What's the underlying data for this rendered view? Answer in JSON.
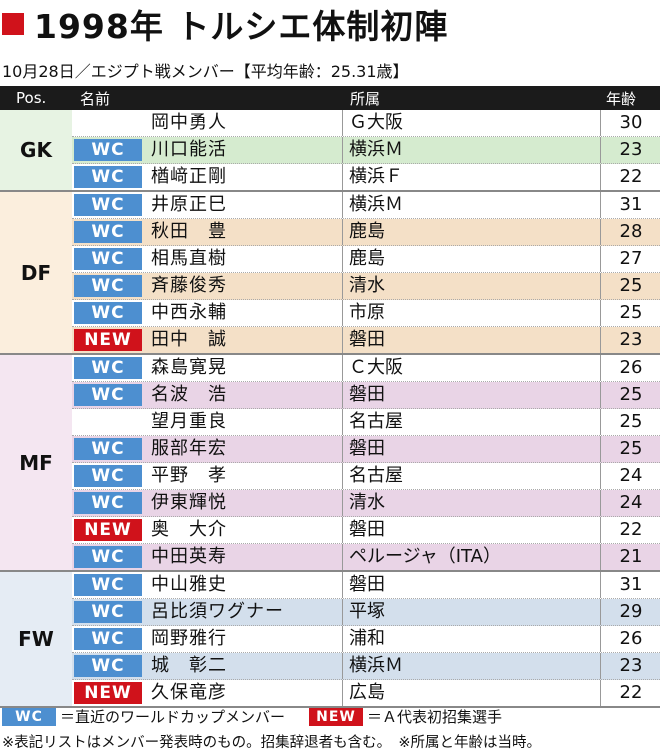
{
  "title": "1998年 トルシエ体制初陣",
  "subtitle": "10月28日／エジプト戦メンバー【平均年齢：25.31歳】",
  "headers": {
    "pos": "Pos.",
    "name": "名前",
    "club": "所属",
    "age": "年齢"
  },
  "badges": {
    "wc": "WC",
    "new": "NEW"
  },
  "colors": {
    "wc": "#4d8fd0",
    "new": "#d0121b"
  },
  "groups": [
    {
      "pos": "GK",
      "bg": "#e7f3e3",
      "stripe": "#d5ebcf",
      "players": [
        {
          "badge": "",
          "name": "岡中勇人",
          "club": "Ｇ大阪",
          "age": "30"
        },
        {
          "badge": "wc",
          "name": "川口能活",
          "club": "横浜Ｍ",
          "age": "23"
        },
        {
          "badge": "wc",
          "name": "楢﨑正剛",
          "club": "横浜Ｆ",
          "age": "22"
        }
      ]
    },
    {
      "pos": "DF",
      "bg": "#fbeedd",
      "stripe": "#f4e0c7",
      "players": [
        {
          "badge": "wc",
          "name": "井原正巳",
          "club": "横浜Ｍ",
          "age": "31"
        },
        {
          "badge": "wc",
          "name": "秋田　豊",
          "club": "鹿島",
          "age": "28"
        },
        {
          "badge": "wc",
          "name": "相馬直樹",
          "club": "鹿島",
          "age": "27"
        },
        {
          "badge": "wc",
          "name": "斉藤俊秀",
          "club": "清水",
          "age": "25"
        },
        {
          "badge": "wc",
          "name": "中西永輔",
          "club": "市原",
          "age": "25"
        },
        {
          "badge": "new",
          "name": "田中　誠",
          "club": "磐田",
          "age": "23"
        }
      ]
    },
    {
      "pos": "MF",
      "bg": "#f4e6f1",
      "stripe": "#e9d4e6",
      "players": [
        {
          "badge": "wc",
          "name": "森島寛晃",
          "club": "Ｃ大阪",
          "age": "26"
        },
        {
          "badge": "wc",
          "name": "名波　浩",
          "club": "磐田",
          "age": "25"
        },
        {
          "badge": "",
          "name": "望月重良",
          "club": "名古屋",
          "age": "25"
        },
        {
          "badge": "wc",
          "name": "服部年宏",
          "club": "磐田",
          "age": "25"
        },
        {
          "badge": "wc",
          "name": "平野　孝",
          "club": "名古屋",
          "age": "24"
        },
        {
          "badge": "wc",
          "name": "伊東輝悦",
          "club": "清水",
          "age": "24"
        },
        {
          "badge": "new",
          "name": "奥　大介",
          "club": "磐田",
          "age": "22"
        },
        {
          "badge": "wc",
          "name": "中田英寿",
          "club": "ペルージャ（ITA）",
          "age": "21"
        }
      ]
    },
    {
      "pos": "FW",
      "bg": "#e5ecf4",
      "stripe": "#d3dfec",
      "players": [
        {
          "badge": "wc",
          "name": "中山雅史",
          "club": "磐田",
          "age": "31"
        },
        {
          "badge": "wc",
          "name": "呂比須ワグナー",
          "club": "平塚",
          "age": "29"
        },
        {
          "badge": "wc",
          "name": "岡野雅行",
          "club": "浦和",
          "age": "26"
        },
        {
          "badge": "wc",
          "name": "城　彰二",
          "club": "横浜Ｍ",
          "age": "23"
        },
        {
          "badge": "new",
          "name": "久保竜彦",
          "club": "広島",
          "age": "22"
        }
      ]
    }
  ],
  "legend": {
    "wc_text": "＝直近のワールドカップメンバー",
    "new_text": "＝Ａ代表初招集選手"
  },
  "note": "※表記リストはメンバー発表時のもの。招集辞退者も含む。　※所属と年齢は当時。"
}
